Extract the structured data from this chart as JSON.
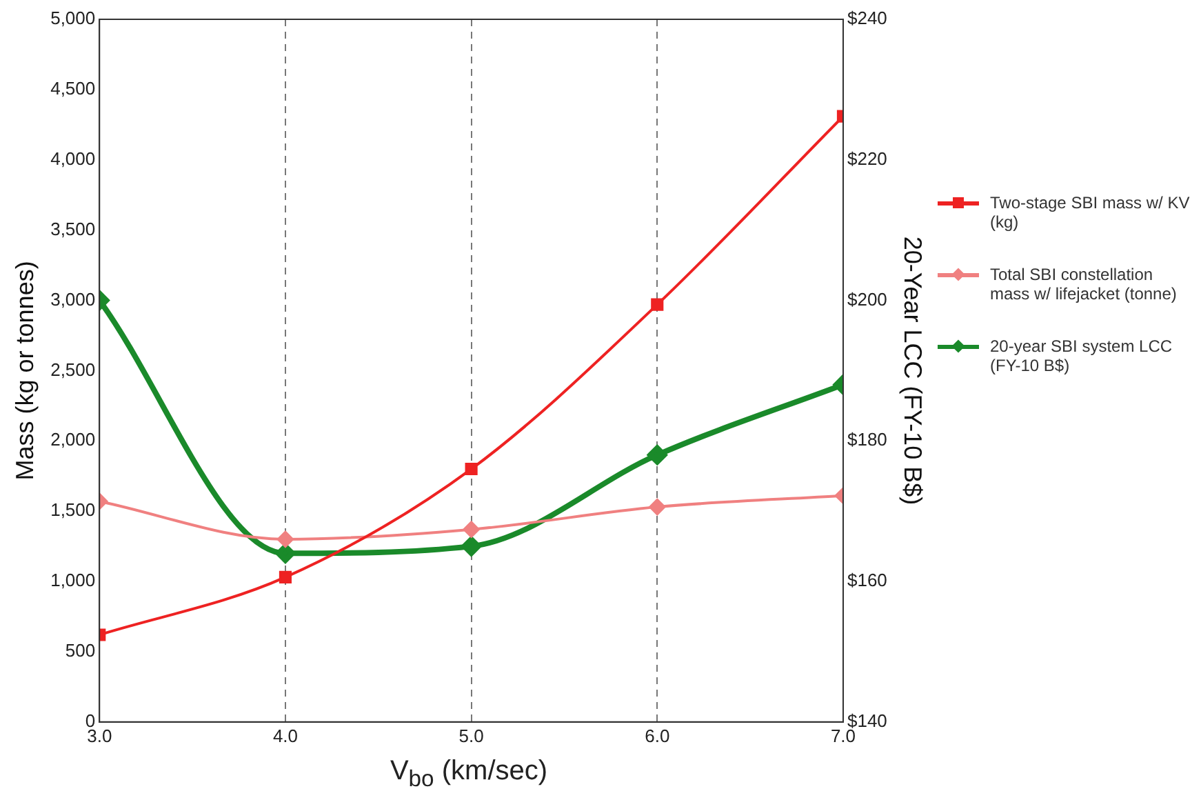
{
  "chart_data": {
    "type": "line",
    "xlabel": "V$_{bo}$ (km/sec)",
    "ylabel": "Mass (kg or tonnes)",
    "y2label": "20-Year LCC (FY-10 B$)",
    "x": [
      3,
      4,
      5,
      6,
      7
    ],
    "xlim": [
      3,
      7
    ],
    "xticks": [
      {
        "value": 3,
        "label": "3.0"
      },
      {
        "value": 4,
        "label": "4.0"
      },
      {
        "value": 5,
        "label": "5.0"
      },
      {
        "value": 6,
        "label": "6.0"
      },
      {
        "value": 7,
        "label": "7.0"
      }
    ],
    "ylim": [
      0,
      5000
    ],
    "yticks": [
      0,
      500,
      {
        "value": 1000,
        "label": "1,000"
      },
      {
        "value": 1500,
        "label": "1,500"
      },
      {
        "value": 2000,
        "label": "2,000"
      },
      {
        "value": 2500,
        "label": "2,500"
      },
      {
        "value": 3000,
        "label": "3,000"
      },
      {
        "value": 3500,
        "label": "3,500"
      },
      {
        "value": 4000,
        "label": "4,000"
      },
      {
        "value": 4500,
        "label": "4,500"
      },
      {
        "value": 5000,
        "label": "5,000"
      }
    ],
    "y2lim": [
      140,
      240
    ],
    "y2ticks": [
      {
        "value": 140,
        "label": "$140"
      },
      {
        "value": 160,
        "label": "$160"
      },
      {
        "value": 180,
        "label": "$180"
      },
      {
        "value": 200,
        "label": "$200"
      },
      {
        "value": 220,
        "label": "$220"
      },
      {
        "value": 240,
        "label": "$240"
      }
    ],
    "grid": "x",
    "legend": "right",
    "series": [
      {
        "name": "Two-stage SBI mass w/ KV (kg)",
        "color": "#ee2222",
        "marker": "square",
        "values": [
          620,
          1030,
          1800,
          2970,
          4310
        ]
      },
      {
        "name": "Total SBI constellation mass w/ lifejacket (tonne)",
        "color": "#f08080",
        "marker": "diamond",
        "values": [
          1570,
          1300,
          1370,
          1530,
          1610
        ]
      },
      {
        "name": "20-year SBI system LCC (FY-10 B$)",
        "color": "#1a8a2a",
        "marker": "diamond",
        "axis": "y2",
        "values": [
          200,
          164,
          165,
          178,
          188
        ]
      }
    ]
  }
}
